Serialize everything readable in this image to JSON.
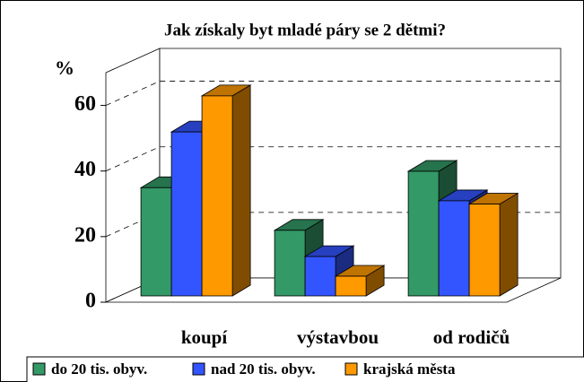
{
  "chart_data": {
    "type": "bar3d",
    "title": "Jak získaly byt mladé páry se 2 dětmi?",
    "y_label": "%",
    "categories": [
      "koupí",
      "výstavbou",
      "od rodičů"
    ],
    "series": [
      {
        "name": "do 20 tis. obyv.",
        "color": "#339966",
        "values": [
          33,
          20,
          38
        ]
      },
      {
        "name": "nad 20 tis. obyv.",
        "color": "#3355ff",
        "values": [
          50,
          12,
          29
        ]
      },
      {
        "name": "krajská města",
        "color": "#ff9900",
        "values": [
          61,
          6,
          28
        ]
      }
    ],
    "ylim": [
      0,
      70
    ],
    "yticks": [
      0,
      20,
      40,
      60
    ],
    "grid": true
  }
}
